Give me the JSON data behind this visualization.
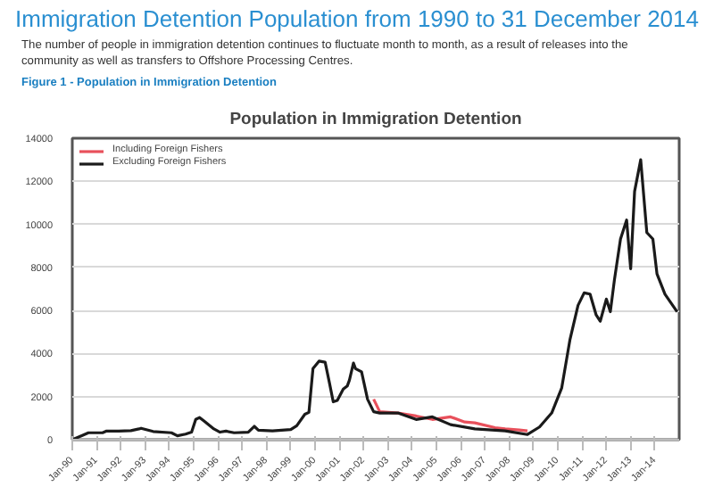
{
  "chart_data": {
    "type": "line",
    "title": "Immigration Detention Population from 1990 to 31 December 2014",
    "subtitle": "The number of people in immigration detention continues to fluctuate month to month, as a result of releases into the community as well as transfers to Offshore Processing Centres.",
    "annotations": [
      "Figure 1 - Population in Immigration Detention",
      "Population in Immigration Detention"
    ],
    "series": [
      {
        "name": "Including Foreign Fishers",
        "color": "#e8505b",
        "x": [
          "2002-06",
          "2002-09",
          "2003-06",
          "2004-03",
          "2004-11",
          "2005-08",
          "2006-03",
          "2006-08",
          "2007-06",
          "2007-11",
          "2008-06",
          "2008-10"
        ],
        "values": [
          1880,
          1300,
          1240,
          1100,
          940,
          1060,
          820,
          780,
          560,
          500,
          450,
          410
        ]
      },
      {
        "name": "Excluding Foreign Fishers",
        "color": "#1a1a1a",
        "x": [
          "1990-01",
          "1990-06",
          "1990-09",
          "1991-04",
          "1991-06",
          "1991-12",
          "1992-06",
          "1992-10",
          "1992-11",
          "1993-05",
          "1994-02",
          "1994-05",
          "1994-09",
          "1994-12",
          "1995-02",
          "1995-04",
          "1995-06",
          "1995-11",
          "1996-02",
          "1996-05",
          "1996-09",
          "1997-04",
          "1997-07",
          "1997-09",
          "1998-04",
          "1999-01",
          "1999-04",
          "1999-08",
          "1999-10",
          "1999-12",
          "2000-03",
          "2000-06",
          "2000-08",
          "2000-10",
          "2000-12",
          "2001-03",
          "2001-05",
          "2001-06",
          "2001-08",
          "2001-09",
          "2001-12",
          "2002-03",
          "2002-06",
          "2002-09",
          "2003-06",
          "2004-03",
          "2004-11",
          "2005-08",
          "2006-08",
          "2007-11",
          "2008-10",
          "2009-04",
          "2009-10",
          "2010-03",
          "2010-07",
          "2010-11",
          "2011-02",
          "2011-05",
          "2011-08",
          "2011-10",
          "2012-01",
          "2012-03",
          "2012-05",
          "2012-08",
          "2012-11",
          "2013-01",
          "2013-03",
          "2013-06",
          "2013-09",
          "2013-12",
          "2014-02",
          "2014-06",
          "2014-12"
        ],
        "values": [
          0,
          200,
          320,
          320,
          400,
          400,
          420,
          500,
          530,
          380,
          320,
          180,
          260,
          350,
          940,
          1030,
          880,
          500,
          350,
          400,
          320,
          350,
          620,
          440,
          410,
          470,
          650,
          1180,
          1270,
          3300,
          3650,
          3600,
          2700,
          1760,
          1820,
          2350,
          2500,
          2760,
          3560,
          3300,
          3150,
          1880,
          1300,
          1240,
          1240,
          940,
          1060,
          700,
          500,
          410,
          240,
          590,
          1240,
          2410,
          4620,
          6240,
          6820,
          6760,
          5790,
          5500,
          6530,
          5940,
          7410,
          9320,
          10200,
          7940,
          11530,
          13000,
          9620,
          9320,
          7700,
          6760,
          5940
        ]
      }
    ],
    "xlim": [
      "1990-01",
      "2015-01"
    ],
    "xticks": [
      {
        "value": "1990-01",
        "label": "Jan-90"
      },
      {
        "value": "1991-01",
        "label": "Jan-91"
      },
      {
        "value": "1992-01",
        "label": "Jan-92"
      },
      {
        "value": "1993-01",
        "label": "Jan-93"
      },
      {
        "value": "1994-01",
        "label": "Jan-94"
      },
      {
        "value": "1995-01",
        "label": "Jan-95"
      },
      {
        "value": "1996-01",
        "label": "Jan-96"
      },
      {
        "value": "1997-01",
        "label": "Jan-97"
      },
      {
        "value": "1998-01",
        "label": "Jan-98"
      },
      {
        "value": "1999-01",
        "label": "Jan-99"
      },
      {
        "value": "2000-01",
        "label": "Jan-00"
      },
      {
        "value": "2001-01",
        "label": "Jan-01"
      },
      {
        "value": "2002-01",
        "label": "Jan-02"
      },
      {
        "value": "2003-01",
        "label": "Jan-03"
      },
      {
        "value": "2004-01",
        "label": "Jan-04"
      },
      {
        "value": "2005-01",
        "label": "Jan-05"
      },
      {
        "value": "2006-01",
        "label": "Jan-06"
      },
      {
        "value": "2007-01",
        "label": "Jan-07"
      },
      {
        "value": "2008-01",
        "label": "Jan-08"
      },
      {
        "value": "2009-01",
        "label": "Jan-09"
      },
      {
        "value": "2010-01",
        "label": "Jan-10"
      },
      {
        "value": "2011-01",
        "label": "Jan-11"
      },
      {
        "value": "2012-01",
        "label": "Jan-12"
      },
      {
        "value": "2013-01",
        "label": "Jan-13"
      },
      {
        "value": "2014-01",
        "label": "Jan-14"
      }
    ],
    "ylim": [
      0,
      14000
    ],
    "yticks": [
      0,
      2000,
      4000,
      6000,
      8000,
      10000,
      12000,
      14000
    ],
    "grid": "y",
    "legend": "top left",
    "marker": "none",
    "line_style": "solid"
  }
}
